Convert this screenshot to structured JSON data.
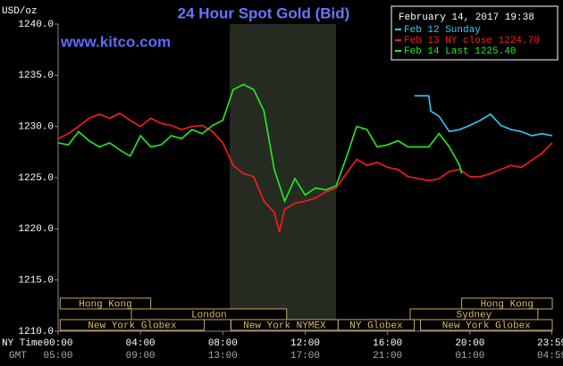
{
  "chart_data": {
    "type": "line",
    "title": "24 Hour Spot Gold (Bid)",
    "subtitle": "February 14, 2017 19:38",
    "watermark": "www.kitco.com",
    "y_label": "USD/oz",
    "x_label": "NY Time",
    "x2_label": "GMT",
    "xlim": [
      0,
      24
    ],
    "xticks": [
      {
        "value": 0,
        "label": "00:00"
      },
      {
        "value": 4,
        "label": "04:00"
      },
      {
        "value": 8,
        "label": "08:00"
      },
      {
        "value": 12,
        "label": "12:00"
      },
      {
        "value": 16,
        "label": "16:00"
      },
      {
        "value": 20,
        "label": "20:00"
      },
      {
        "value": 23.98,
        "label": "23:59"
      }
    ],
    "x2ticks": [
      {
        "value": 0,
        "label": "05:00"
      },
      {
        "value": 4,
        "label": "09:00"
      },
      {
        "value": 8,
        "label": "13:00"
      },
      {
        "value": 12,
        "label": "17:00"
      },
      {
        "value": 16,
        "label": "21:00"
      },
      {
        "value": 20,
        "label": "01:00"
      },
      {
        "value": 23.98,
        "label": "04:59"
      }
    ],
    "ylim": [
      1210,
      1240
    ],
    "yticks": [
      {
        "value": 1210,
        "label": "1210.0"
      },
      {
        "value": 1215,
        "label": "1215.0"
      },
      {
        "value": 1220,
        "label": "1220.0"
      },
      {
        "value": 1225,
        "label": "1225.0"
      },
      {
        "value": 1230,
        "label": "1230.0"
      },
      {
        "value": 1235,
        "label": "1235.0"
      },
      {
        "value": 1240,
        "label": "1240.0"
      }
    ],
    "grid": false,
    "highlight": {
      "start": 8.33,
      "end": 13.5,
      "color": "#262b22"
    },
    "sessions": [
      {
        "label": "Hong Kong",
        "start": 0.1,
        "end": 4.5,
        "row": 1
      },
      {
        "label": "London",
        "start": 3.56,
        "end": 11.1,
        "row": 2
      },
      {
        "label": "New York Globex",
        "start": 0.1,
        "end": 7.1,
        "row": 3
      },
      {
        "label": "New York NYMEX",
        "start": 8.4,
        "end": 13.6,
        "row": 3
      },
      {
        "label": "NY Globex",
        "start": 13.6,
        "end": 17.3,
        "row": 3
      },
      {
        "label": "Hong Kong",
        "start": 19.6,
        "end": 24,
        "row": 1
      },
      {
        "label": "Sydney",
        "start": 17.1,
        "end": 23.3,
        "row": 2
      },
      {
        "label": "New York Globex",
        "start": 17.6,
        "end": 24,
        "row": 3
      }
    ],
    "series": [
      {
        "name": "Feb 12 Sunday",
        "color": "#33ccff",
        "x": [
          17.3,
          18,
          18.1,
          18.5,
          19,
          19.5,
          20,
          20.5,
          21,
          21.5,
          22,
          22.5,
          23,
          23.5,
          24
        ],
        "values": [
          1233.0,
          1233.0,
          1231.5,
          1231.0,
          1229.5,
          1229.7,
          1230.1,
          1230.6,
          1231.2,
          1230.1,
          1229.7,
          1229.5,
          1229.1,
          1229.3,
          1229.1
        ]
      },
      {
        "name": "Feb 13 NY close 1224.70",
        "color": "#ff1a1a",
        "x": [
          0,
          0.5,
          1,
          1.5,
          2,
          2.5,
          3,
          3.5,
          4,
          4.5,
          5,
          5.5,
          6,
          6.5,
          7,
          7.5,
          8,
          8.5,
          9,
          9.5,
          10,
          10.5,
          10.75,
          11,
          11.5,
          12,
          12.5,
          13,
          13.5,
          14,
          14.5,
          15,
          15.5,
          16,
          16.5,
          17,
          17.5,
          18,
          18.5,
          19,
          19.5,
          20,
          20.5,
          21,
          21.5,
          22,
          22.5,
          23,
          23.5,
          24
        ],
        "values": [
          1228.8,
          1229.3,
          1230.0,
          1230.8,
          1231.2,
          1230.8,
          1231.3,
          1230.6,
          1230.0,
          1230.8,
          1230.3,
          1230.1,
          1229.7,
          1230.0,
          1230.1,
          1229.5,
          1228.4,
          1226.2,
          1225.4,
          1225.1,
          1222.7,
          1221.6,
          1219.7,
          1221.9,
          1222.5,
          1222.7,
          1223.0,
          1223.6,
          1224.0,
          1225.4,
          1226.8,
          1226.2,
          1226.5,
          1226.0,
          1225.8,
          1225.1,
          1224.9,
          1224.7,
          1224.9,
          1225.6,
          1225.8,
          1225.1,
          1225.1,
          1225.4,
          1225.8,
          1226.2,
          1226.0,
          1226.7,
          1227.4,
          1228.4
        ]
      },
      {
        "name": "Feb 14 Last 1225.40",
        "color": "#22ee22",
        "x": [
          0,
          0.5,
          1,
          1.5,
          2,
          2.5,
          3,
          3.5,
          4,
          4.5,
          5,
          5.5,
          6,
          6.5,
          7,
          7.5,
          8,
          8.5,
          9,
          9.5,
          10,
          10.5,
          11,
          11.5,
          12,
          12.5,
          13,
          13.5,
          14,
          14.5,
          15,
          15.5,
          16,
          16.5,
          17,
          17.5,
          18,
          18.5,
          19,
          19.5,
          19.6
        ],
        "values": [
          1228.4,
          1228.2,
          1229.5,
          1228.6,
          1228.0,
          1228.4,
          1227.7,
          1227.1,
          1229.1,
          1228.0,
          1228.2,
          1229.1,
          1228.8,
          1229.7,
          1229.3,
          1230.1,
          1230.6,
          1233.6,
          1234.1,
          1233.6,
          1231.5,
          1225.8,
          1222.7,
          1224.9,
          1223.3,
          1224.0,
          1223.8,
          1224.2,
          1227.0,
          1230.0,
          1229.7,
          1228.0,
          1228.2,
          1228.6,
          1228.0,
          1228.0,
          1228.0,
          1229.3,
          1228.0,
          1226.2,
          1225.4
        ]
      }
    ]
  }
}
